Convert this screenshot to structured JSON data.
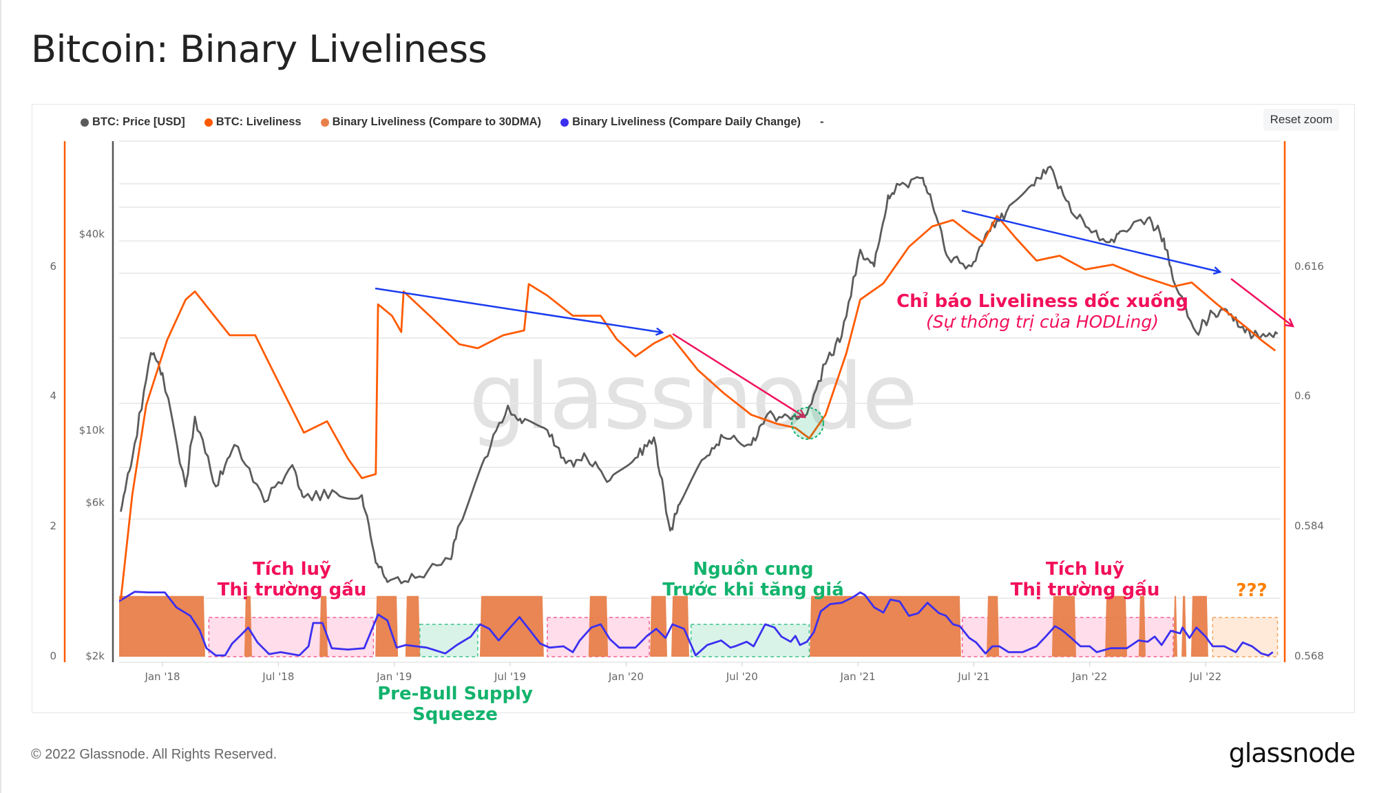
{
  "title": "Bitcoin: Binary Liveliness",
  "reset_zoom": "Reset zoom",
  "legend": [
    {
      "label": "BTC: Price [USD]",
      "color": "#5b5b5b"
    },
    {
      "label": "BTC: Liveliness",
      "color": "#ff5a00"
    },
    {
      "label": "Binary Liveliness (Compare to 30DMA)",
      "color": "#e8804a"
    },
    {
      "label": "Binary Liveliness (Compare Daily Change)",
      "color": "#3b2ff0"
    }
  ],
  "legend_extra": "-",
  "watermark": "glassnode",
  "footer": {
    "copyright": "© 2022 Glassnode. All Rights Reserved.",
    "logo": "glassnode"
  },
  "annotations": {
    "bear1": {
      "line1": "Tích luỹ",
      "line2": "Thị trường gấu",
      "color": "#f2105a"
    },
    "prebull": {
      "line1": "Pre-Bull Supply",
      "line2": "Squeeze",
      "color": "#12b36d"
    },
    "supply": {
      "line1": "Nguồn cung",
      "line2": "Trước khi tăng giá",
      "color": "#12b36d"
    },
    "bear2": {
      "line1": "Tích luỹ",
      "line2": "Thị trường gấu",
      "color": "#f2105a"
    },
    "unknown": {
      "line1": "???",
      "color": "#ff7f00"
    },
    "slope": {
      "line1": "Chỉ báo Liveliness dốc xuống",
      "line2": "(Sự thống trị của HODLing)",
      "color": "#f2105a"
    }
  },
  "chart_data": {
    "type": "line",
    "title": "Bitcoin: Binary Liveliness",
    "x_unit": "decimal year",
    "x_ticks": [
      "Jan '18",
      "Jul '18",
      "Jan '19",
      "Jul '19",
      "Jan '20",
      "Jul '20",
      "Jan '21",
      "Jul '21",
      "Jan '22",
      "Jul '22"
    ],
    "x_tick_values": [
      2018,
      2018.5,
      2019,
      2019.5,
      2020,
      2020.5,
      2021,
      2021.5,
      2022,
      2022.5
    ],
    "y_left_binary": {
      "ticks": [
        "0",
        "2",
        "4",
        "6"
      ],
      "range": [
        0,
        6
      ]
    },
    "y_price": {
      "ticks": [
        "$2k",
        "$6k",
        "$10k",
        "$40k"
      ],
      "tick_values": [
        2000,
        6000,
        10000,
        40000
      ],
      "scale": "log"
    },
    "y_right_liveliness": {
      "ticks": [
        "0.568",
        "0.584",
        "0.6",
        "0.616"
      ],
      "range": [
        0.568,
        0.616
      ]
    },
    "grid": true,
    "legend_position": "top-left",
    "series": [
      {
        "name": "BTC: Price [USD]",
        "axis": "price",
        "points": [
          [
            2017.82,
            5600
          ],
          [
            2017.87,
            8200
          ],
          [
            2017.95,
            17300
          ],
          [
            2018.0,
            15000
          ],
          [
            2018.1,
            6700
          ],
          [
            2018.14,
            11000
          ],
          [
            2018.23,
            6700
          ],
          [
            2018.31,
            9000
          ],
          [
            2018.44,
            6000
          ],
          [
            2018.56,
            7800
          ],
          [
            2018.61,
            6200
          ],
          [
            2018.75,
            6400
          ],
          [
            2018.86,
            6300
          ],
          [
            2018.92,
            3900
          ],
          [
            2018.97,
            3400
          ],
          [
            2019.09,
            3500
          ],
          [
            2019.24,
            4000
          ],
          [
            2019.28,
            5100
          ],
          [
            2019.39,
            8200
          ],
          [
            2019.49,
            11900
          ],
          [
            2019.55,
            10500
          ],
          [
            2019.66,
            10000
          ],
          [
            2019.74,
            7900
          ],
          [
            2019.83,
            8200
          ],
          [
            2019.93,
            7000
          ],
          [
            2020.04,
            8200
          ],
          [
            2020.12,
            9500
          ],
          [
            2020.19,
            4900
          ],
          [
            2020.23,
            5900
          ],
          [
            2020.34,
            8200
          ],
          [
            2020.42,
            9500
          ],
          [
            2020.54,
            9000
          ],
          [
            2020.61,
            11200
          ],
          [
            2020.71,
            10800
          ],
          [
            2020.78,
            11200
          ],
          [
            2020.86,
            16000
          ],
          [
            2020.93,
            19500
          ],
          [
            2021.01,
            36000
          ],
          [
            2021.07,
            32000
          ],
          [
            2021.13,
            53000
          ],
          [
            2021.18,
            57000
          ],
          [
            2021.28,
            60000
          ],
          [
            2021.33,
            47000
          ],
          [
            2021.39,
            34000
          ],
          [
            2021.49,
            32000
          ],
          [
            2021.56,
            41000
          ],
          [
            2021.64,
            47000
          ],
          [
            2021.75,
            57000
          ],
          [
            2021.83,
            65000
          ],
          [
            2021.92,
            47000
          ],
          [
            2022.02,
            41000
          ],
          [
            2022.08,
            38000
          ],
          [
            2022.13,
            41000
          ],
          [
            2022.25,
            45000
          ],
          [
            2022.32,
            39000
          ],
          [
            2022.36,
            29000
          ],
          [
            2022.46,
            20000
          ],
          [
            2022.53,
            23000
          ],
          [
            2022.59,
            23500
          ],
          [
            2022.67,
            20000
          ],
          [
            2022.74,
            19500
          ],
          [
            2022.81,
            19800
          ]
        ]
      },
      {
        "name": "BTC: Liveliness",
        "axis": "liveliness",
        "points": [
          [
            2017.82,
            0.575
          ],
          [
            2017.87,
            0.588
          ],
          [
            2017.93,
            0.599
          ],
          [
            2018.02,
            0.607
          ],
          [
            2018.1,
            0.612
          ],
          [
            2018.14,
            0.613
          ],
          [
            2018.29,
            0.6076
          ],
          [
            2018.4,
            0.6076
          ],
          [
            2018.48,
            0.603
          ],
          [
            2018.61,
            0.5956
          ],
          [
            2018.71,
            0.597
          ],
          [
            2018.8,
            0.5924
          ],
          [
            2018.86,
            0.59
          ],
          [
            2018.92,
            0.5905
          ],
          [
            2018.93,
            0.6114
          ],
          [
            2018.99,
            0.61
          ],
          [
            2019.03,
            0.608
          ],
          [
            2019.04,
            0.613
          ],
          [
            2019.16,
            0.6098
          ],
          [
            2019.28,
            0.6065
          ],
          [
            2019.36,
            0.606
          ],
          [
            2019.47,
            0.6076
          ],
          [
            2019.56,
            0.6082
          ],
          [
            2019.58,
            0.6139
          ],
          [
            2019.66,
            0.6125
          ],
          [
            2019.77,
            0.61
          ],
          [
            2019.89,
            0.61
          ],
          [
            2019.96,
            0.6071
          ],
          [
            2020.04,
            0.605
          ],
          [
            2020.12,
            0.6066
          ],
          [
            2020.19,
            0.6076
          ],
          [
            2020.31,
            0.6033
          ],
          [
            2020.42,
            0.6005
          ],
          [
            2020.54,
            0.5978
          ],
          [
            2020.65,
            0.5967
          ],
          [
            2020.73,
            0.5962
          ],
          [
            2020.79,
            0.5949
          ],
          [
            2020.86,
            0.5978
          ],
          [
            2020.95,
            0.6054
          ],
          [
            2021.01,
            0.612
          ],
          [
            2021.11,
            0.614
          ],
          [
            2021.22,
            0.6185
          ],
          [
            2021.32,
            0.621
          ],
          [
            2021.41,
            0.6218
          ],
          [
            2021.49,
            0.62
          ],
          [
            2021.54,
            0.619
          ],
          [
            2021.6,
            0.6223
          ],
          [
            2021.68,
            0.6196
          ],
          [
            2021.77,
            0.6168
          ],
          [
            2021.87,
            0.6174
          ],
          [
            2021.98,
            0.6157
          ],
          [
            2022.1,
            0.6163
          ],
          [
            2022.21,
            0.615
          ],
          [
            2022.36,
            0.6136
          ],
          [
            2022.44,
            0.6141
          ],
          [
            2022.55,
            0.6114
          ],
          [
            2022.67,
            0.6087
          ],
          [
            2022.74,
            0.607
          ],
          [
            2022.8,
            0.6057
          ]
        ]
      },
      {
        "name": "Binary Liveliness (Compare to 30DMA)",
        "axis": "binary",
        "value": 1,
        "periods": [
          [
            2017.807,
            2018.184
          ],
          [
            2018.353,
            2018.386
          ],
          [
            2018.677,
            2018.713
          ],
          [
            2018.918,
            2019.016
          ],
          [
            2019.048,
            2019.111
          ],
          [
            2019.369,
            2019.645
          ],
          [
            2019.838,
            2019.922
          ],
          [
            2020.103,
            2020.177
          ],
          [
            2020.195,
            2020.272
          ],
          [
            2020.792,
            2021.445
          ],
          [
            2021.555,
            2021.609
          ],
          [
            2021.837,
            2021.941
          ],
          [
            2022.066,
            2022.161
          ],
          [
            2022.211,
            2022.241
          ],
          [
            2022.36,
            2022.378
          ],
          [
            2022.396,
            2022.417
          ],
          [
            2022.437,
            2022.511
          ]
        ]
      },
      {
        "name": "Binary Liveliness (Compare Daily Change)",
        "axis": "binary",
        "points": [
          [
            2017.81,
            0.85
          ],
          [
            2017.88,
            1.0
          ],
          [
            2017.94,
            0.99
          ],
          [
            2018.01,
            0.99
          ],
          [
            2018.06,
            0.76
          ],
          [
            2018.12,
            0.63
          ],
          [
            2018.16,
            0.41
          ],
          [
            2018.19,
            0.13
          ],
          [
            2018.23,
            0.02
          ],
          [
            2018.27,
            0.02
          ],
          [
            2018.3,
            0.2
          ],
          [
            2018.34,
            0.34
          ],
          [
            2018.37,
            0.45
          ],
          [
            2018.41,
            0.22
          ],
          [
            2018.46,
            0.04
          ],
          [
            2018.51,
            0.07
          ],
          [
            2018.59,
            0.02
          ],
          [
            2018.63,
            0.16
          ],
          [
            2018.65,
            0.52
          ],
          [
            2018.69,
            0.52
          ],
          [
            2018.73,
            0.13
          ],
          [
            2018.8,
            0.11
          ],
          [
            2018.87,
            0.13
          ],
          [
            2018.93,
            0.65
          ],
          [
            2018.97,
            0.56
          ],
          [
            2019.01,
            0.14
          ],
          [
            2019.05,
            0.18
          ],
          [
            2019.14,
            0.14
          ],
          [
            2019.22,
            0.05
          ],
          [
            2019.27,
            0.18
          ],
          [
            2019.33,
            0.31
          ],
          [
            2019.37,
            0.5
          ],
          [
            2019.41,
            0.43
          ],
          [
            2019.45,
            0.25
          ],
          [
            2019.5,
            0.45
          ],
          [
            2019.54,
            0.61
          ],
          [
            2019.58,
            0.43
          ],
          [
            2019.63,
            0.2
          ],
          [
            2019.67,
            0.14
          ],
          [
            2019.73,
            0.16
          ],
          [
            2019.77,
            0.07
          ],
          [
            2019.8,
            0.25
          ],
          [
            2019.85,
            0.45
          ],
          [
            2019.89,
            0.5
          ],
          [
            2019.93,
            0.27
          ],
          [
            2019.97,
            0.14
          ],
          [
            2020.04,
            0.14
          ],
          [
            2020.09,
            0.32
          ],
          [
            2020.13,
            0.43
          ],
          [
            2020.17,
            0.29
          ],
          [
            2020.2,
            0.5
          ],
          [
            2020.25,
            0.43
          ],
          [
            2020.3,
            0.02
          ],
          [
            2020.35,
            0.18
          ],
          [
            2020.41,
            0.25
          ],
          [
            2020.45,
            0.14
          ],
          [
            2020.47,
            0.16
          ],
          [
            2020.52,
            0.23
          ],
          [
            2020.55,
            0.16
          ],
          [
            2020.6,
            0.5
          ],
          [
            2020.64,
            0.45
          ],
          [
            2020.67,
            0.31
          ],
          [
            2020.71,
            0.23
          ],
          [
            2020.73,
            0.32
          ],
          [
            2020.75,
            0.18
          ],
          [
            2020.78,
            0.23
          ],
          [
            2020.81,
            0.38
          ],
          [
            2020.84,
            0.7
          ],
          [
            2020.88,
            0.81
          ],
          [
            2020.93,
            0.83
          ],
          [
            2020.98,
            0.92
          ],
          [
            2021.01,
            0.99
          ],
          [
            2021.03,
            0.95
          ],
          [
            2021.07,
            0.76
          ],
          [
            2021.11,
            0.68
          ],
          [
            2021.14,
            0.88
          ],
          [
            2021.18,
            0.85
          ],
          [
            2021.22,
            0.63
          ],
          [
            2021.26,
            0.67
          ],
          [
            2021.3,
            0.83
          ],
          [
            2021.35,
            0.67
          ],
          [
            2021.38,
            0.63
          ],
          [
            2021.41,
            0.5
          ],
          [
            2021.44,
            0.47
          ],
          [
            2021.48,
            0.29
          ],
          [
            2021.51,
            0.22
          ],
          [
            2021.55,
            0.05
          ],
          [
            2021.58,
            0.16
          ],
          [
            2021.61,
            0.16
          ],
          [
            2021.65,
            0.07
          ],
          [
            2021.71,
            0.07
          ],
          [
            2021.77,
            0.16
          ],
          [
            2021.81,
            0.31
          ],
          [
            2021.85,
            0.47
          ],
          [
            2021.88,
            0.41
          ],
          [
            2021.92,
            0.29
          ],
          [
            2021.96,
            0.16
          ],
          [
            2022.0,
            0.16
          ],
          [
            2022.03,
            0.07
          ],
          [
            2022.09,
            0.13
          ],
          [
            2022.16,
            0.13
          ],
          [
            2022.21,
            0.25
          ],
          [
            2022.25,
            0.23
          ],
          [
            2022.28,
            0.31
          ],
          [
            2022.31,
            0.18
          ],
          [
            2022.35,
            0.4
          ],
          [
            2022.39,
            0.36
          ],
          [
            2022.4,
            0.45
          ],
          [
            2022.43,
            0.29
          ],
          [
            2022.46,
            0.45
          ],
          [
            2022.5,
            0.31
          ],
          [
            2022.53,
            0.16
          ],
          [
            2022.58,
            0.16
          ],
          [
            2022.63,
            0.07
          ],
          [
            2022.66,
            0.22
          ],
          [
            2022.7,
            0.16
          ],
          [
            2022.74,
            0.05
          ],
          [
            2022.77,
            0.02
          ],
          [
            2022.79,
            0.07
          ]
        ]
      }
    ],
    "zones": [
      {
        "kind": "bear",
        "range": [
          2018.2,
          2018.91
        ]
      },
      {
        "kind": "prebull",
        "range": [
          2019.11,
          2019.36
        ]
      },
      {
        "kind": "bear",
        "range": [
          2019.66,
          2020.1
        ]
      },
      {
        "kind": "prebull",
        "range": [
          2020.28,
          2020.79
        ]
      },
      {
        "kind": "bear",
        "range": [
          2021.45,
          2022.36
        ]
      },
      {
        "kind": "unknown",
        "range": [
          2022.53,
          2022.81
        ]
      }
    ]
  }
}
